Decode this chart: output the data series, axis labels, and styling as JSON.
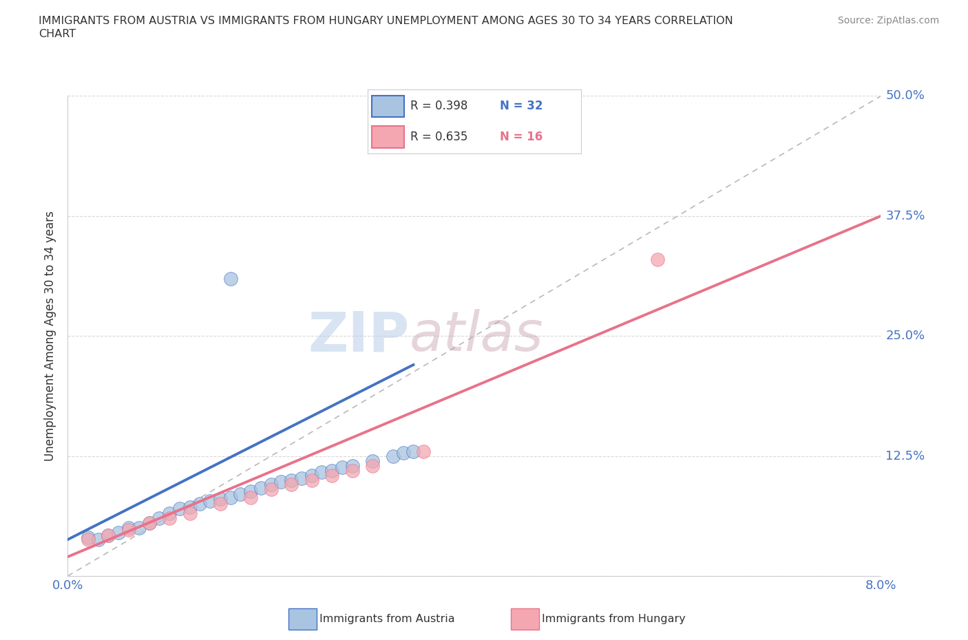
{
  "title_line1": "IMMIGRANTS FROM AUSTRIA VS IMMIGRANTS FROM HUNGARY UNEMPLOYMENT AMONG AGES 30 TO 34 YEARS CORRELATION",
  "title_line2": "CHART",
  "source_text": "Source: ZipAtlas.com",
  "ylabel": "Unemployment Among Ages 30 to 34 years",
  "xlim": [
    0.0,
    0.08
  ],
  "ylim": [
    0.0,
    0.5
  ],
  "xticks": [
    0.0,
    0.02,
    0.04,
    0.06,
    0.08
  ],
  "yticks": [
    0.0,
    0.125,
    0.25,
    0.375,
    0.5
  ],
  "xticklabels": [
    "0.0%",
    "",
    "",
    "",
    "8.0%"
  ],
  "yticklabels": [
    "",
    "12.5%",
    "25.0%",
    "37.5%",
    "50.0%"
  ],
  "austria_color": "#a8c4e0",
  "hungary_color": "#f4a7b0",
  "austria_line_color": "#4472c4",
  "hungary_line_color": "#e8728a",
  "diagonal_color": "#b8b8b8",
  "watermark_color_zip": "#b8cfe8",
  "watermark_color_atlas": "#c8a0b0",
  "legend_austria_R": "R = 0.398",
  "legend_austria_N": "N = 32",
  "legend_hungary_R": "R = 0.635",
  "legend_hungary_N": "N = 16",
  "austria_scatter_x": [
    0.002,
    0.003,
    0.004,
    0.005,
    0.006,
    0.007,
    0.008,
    0.009,
    0.01,
    0.011,
    0.012,
    0.013,
    0.014,
    0.015,
    0.016,
    0.017,
    0.018,
    0.019,
    0.02,
    0.021,
    0.022,
    0.023,
    0.024,
    0.025,
    0.026,
    0.027,
    0.028,
    0.03,
    0.032,
    0.033,
    0.034,
    0.016
  ],
  "austria_scatter_y": [
    0.04,
    0.038,
    0.042,
    0.045,
    0.05,
    0.05,
    0.055,
    0.06,
    0.065,
    0.07,
    0.072,
    0.075,
    0.078,
    0.08,
    0.082,
    0.085,
    0.088,
    0.092,
    0.095,
    0.098,
    0.1,
    0.102,
    0.105,
    0.108,
    0.11,
    0.113,
    0.115,
    0.12,
    0.125,
    0.128,
    0.13,
    0.31
  ],
  "hungary_scatter_x": [
    0.002,
    0.004,
    0.006,
    0.008,
    0.01,
    0.012,
    0.015,
    0.018,
    0.02,
    0.022,
    0.024,
    0.026,
    0.028,
    0.03,
    0.035,
    0.058
  ],
  "hungary_scatter_y": [
    0.038,
    0.042,
    0.048,
    0.055,
    0.06,
    0.065,
    0.075,
    0.082,
    0.09,
    0.095,
    0.1,
    0.105,
    0.11,
    0.115,
    0.13,
    0.33
  ],
  "austria_line_x": [
    0.0,
    0.034
  ],
  "austria_line_y": [
    0.038,
    0.22
  ],
  "hungary_line_x": [
    0.0,
    0.08
  ],
  "hungary_line_y": [
    0.02,
    0.375
  ],
  "background_color": "#ffffff",
  "grid_color": "#d8d8d8"
}
